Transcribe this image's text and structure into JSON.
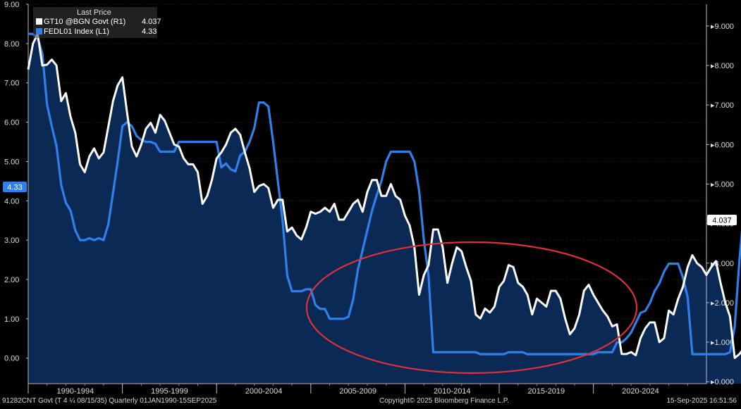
{
  "legend": {
    "header": "Last Price",
    "series": [
      {
        "label": "GT10 @BGN Govt  (R1)",
        "value": "4.037",
        "color": "#ffffff"
      },
      {
        "label": "FEDL01 Index  (L1)",
        "value": "4.33",
        "color": "#2f80ed"
      }
    ]
  },
  "footer": {
    "left": "91282CNT Govt (T 4 ¼ 08/15/35)  Quarterly 01JAN1990-15SEP2025",
    "center": "Copyright© 2025 Bloomberg Finance L.P.",
    "right": "15-Sep-2025 16:51:56"
  },
  "colors": {
    "background": "#000000",
    "area": "#0a2a55",
    "fed": "#2f80ed",
    "gt10": "#ffffff",
    "ellipse": "#e0303a"
  },
  "chart_data": {
    "type": "line",
    "x_tick_labels": [
      "1990-1994",
      "1995-1999",
      "2000-2004",
      "2005-2009",
      "2010-2014",
      "2015-2019",
      "2020-2024"
    ],
    "left_axis": {
      "ylim": [
        -0.65,
        9.0
      ],
      "ticks": [
        "9.00",
        "8.00",
        "7.00",
        "6.00",
        "5.00",
        "4.00",
        "3.00",
        "2.00",
        "1.00",
        "0.00"
      ]
    },
    "right_axis": {
      "ylim": [
        -0.05,
        9.55
      ],
      "ticks": [
        "9.000",
        "8.000",
        "7.000",
        "6.000",
        "5.000",
        "4.000",
        "3.000",
        "2.000",
        "1.000",
        "0.000"
      ]
    },
    "last_value_labels": {
      "left": "4.33",
      "right": "4.037"
    },
    "grid": true,
    "annotation": "ellipse",
    "series": [
      {
        "name": "FEDL01 Index  (L1)",
        "axis": "left",
        "x_start": 1990.0,
        "x_step": 0.25,
        "values": [
          8.25,
          8.24,
          8.15,
          7.75,
          6.45,
          5.9,
          5.4,
          4.4,
          3.95,
          3.75,
          3.25,
          3.0,
          3.0,
          3.05,
          3.0,
          3.05,
          3.0,
          3.4,
          4.2,
          5.0,
          5.9,
          6.0,
          5.9,
          5.65,
          5.55,
          5.5,
          5.5,
          5.45,
          5.25,
          5.25,
          5.25,
          5.25,
          5.5,
          5.5,
          5.5,
          5.5,
          5.5,
          5.5,
          5.5,
          5.5,
          5.5,
          4.85,
          4.95,
          4.8,
          4.75,
          5.15,
          5.25,
          5.5,
          5.85,
          6.5,
          6.5,
          6.4,
          5.5,
          4.5,
          3.5,
          2.1,
          1.7,
          1.7,
          1.7,
          1.75,
          1.75,
          1.35,
          1.25,
          1.25,
          1.0,
          1.0,
          1.0,
          1.0,
          1.05,
          1.5,
          2.25,
          2.75,
          3.25,
          3.75,
          4.15,
          4.5,
          5.0,
          5.25,
          5.25,
          5.25,
          5.25,
          5.25,
          5.0,
          4.25,
          3.0,
          2.1,
          0.15,
          0.15,
          0.15,
          0.15,
          0.15,
          0.15,
          0.15,
          0.15,
          0.15,
          0.15,
          0.1,
          0.1,
          0.1,
          0.1,
          0.1,
          0.1,
          0.15,
          0.15,
          0.15,
          0.15,
          0.1,
          0.1,
          0.1,
          0.1,
          0.1,
          0.1,
          0.1,
          0.1,
          0.1,
          0.1,
          0.1,
          0.1,
          0.1,
          0.1,
          0.1,
          0.15,
          0.15,
          0.15,
          0.15,
          0.4,
          0.4,
          0.5,
          0.65,
          0.9,
          1.15,
          1.2,
          1.4,
          1.7,
          1.9,
          2.2,
          2.4,
          2.4,
          2.4,
          2.05,
          1.55,
          0.1,
          0.1,
          0.1,
          0.1,
          0.1,
          0.1,
          0.1,
          0.1,
          0.15,
          0.8,
          2.5,
          3.8,
          4.3,
          4.8,
          5.1,
          5.33,
          5.33,
          5.33,
          5.33,
          5.33,
          5.3,
          4.8,
          4.5,
          4.33,
          4.33,
          4.33
        ]
      },
      {
        "name": "GT10 @BGN Govt  (R1)",
        "axis": "right",
        "x_start": 1990.0,
        "x_step": 0.25,
        "values": [
          7.9,
          8.55,
          8.8,
          8.0,
          8.02,
          8.15,
          8.0,
          7.1,
          7.3,
          6.7,
          6.3,
          5.5,
          5.3,
          5.7,
          5.9,
          5.65,
          5.8,
          6.45,
          7.1,
          7.5,
          7.7,
          6.8,
          5.95,
          5.7,
          6.0,
          6.4,
          6.55,
          6.3,
          6.75,
          6.6,
          6.3,
          6.0,
          5.95,
          5.65,
          5.5,
          5.5,
          5.3,
          4.5,
          4.7,
          5.1,
          5.65,
          5.8,
          6.0,
          6.3,
          6.4,
          6.25,
          5.8,
          5.4,
          4.8,
          4.95,
          5.0,
          4.9,
          4.4,
          4.6,
          4.6,
          3.8,
          3.9,
          3.7,
          3.6,
          3.9,
          4.3,
          4.25,
          4.3,
          4.4,
          4.3,
          4.5,
          4.1,
          4.1,
          4.3,
          4.5,
          4.6,
          4.3,
          4.8,
          5.1,
          5.1,
          4.7,
          4.7,
          5.0,
          4.7,
          4.6,
          4.2,
          3.95,
          3.4,
          2.2,
          2.7,
          2.95,
          3.85,
          3.85,
          3.4,
          2.5,
          3.0,
          3.4,
          3.3,
          2.9,
          2.55,
          1.7,
          1.6,
          1.85,
          1.75,
          1.9,
          2.4,
          2.55,
          2.95,
          2.9,
          2.5,
          2.4,
          2.2,
          1.7,
          2.1,
          2.0,
          1.9,
          2.3,
          2.3,
          2.1,
          1.6,
          1.2,
          1.35,
          1.7,
          2.3,
          2.45,
          2.2,
          2.0,
          1.8,
          1.65,
          1.4,
          1.45,
          0.7,
          0.7,
          0.75,
          0.67,
          1.1,
          1.35,
          1.5,
          1.5,
          1.0,
          1.1,
          1.8,
          1.7,
          2.1,
          2.4,
          2.9,
          3.2,
          3.0,
          2.9,
          2.7,
          2.9,
          3.05,
          2.5,
          2.0,
          1.65,
          0.6,
          0.7,
          0.85,
          0.7,
          1.15,
          0.9,
          1.45,
          1.45,
          1.55,
          2.3,
          3.0,
          3.8,
          3.75,
          4.5,
          3.85,
          3.95,
          4.5,
          4.2,
          3.8,
          4.6,
          4.5,
          4.3,
          4.037
        ]
      }
    ]
  }
}
